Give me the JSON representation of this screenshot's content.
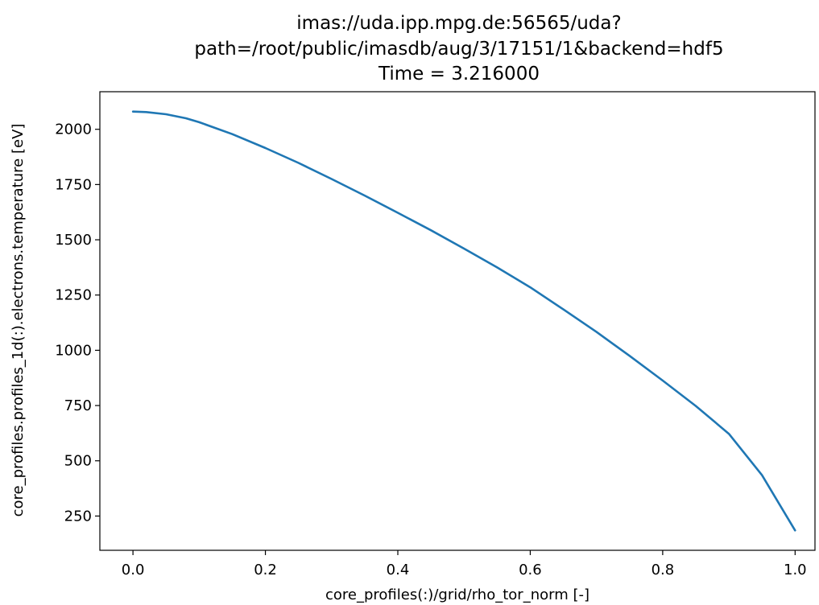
{
  "chart_data": {
    "type": "line",
    "title_lines": [
      "imas://uda.ipp.mpg.de:56565/uda?",
      "path=/root/public/imasdb/aug/3/17151/1&backend=hdf5",
      "Time = 3.216000"
    ],
    "xlabel": "core_profiles(:)/grid/rho_tor_norm [-]",
    "ylabel": "core_profiles.profiles_1d(:).electrons.temperature [eV]",
    "xlim": [
      -0.05,
      1.03
    ],
    "ylim": [
      95,
      2170
    ],
    "x_ticks": [
      0.0,
      0.2,
      0.4,
      0.6,
      0.8,
      1.0
    ],
    "x_tick_labels": [
      "0.0",
      "0.2",
      "0.4",
      "0.6",
      "0.8",
      "1.0"
    ],
    "y_ticks": [
      250,
      500,
      750,
      1000,
      1250,
      1500,
      1750,
      2000
    ],
    "y_tick_labels": [
      "250",
      "500",
      "750",
      "1000",
      "1250",
      "1500",
      "1750",
      "2000"
    ],
    "grid": false,
    "colors": {
      "line": "#1f77b4",
      "axes": "#000000"
    },
    "series": [
      {
        "x": [
          0.0,
          0.02,
          0.05,
          0.08,
          0.1,
          0.15,
          0.2,
          0.25,
          0.3,
          0.35,
          0.4,
          0.45,
          0.5,
          0.55,
          0.6,
          0.65,
          0.7,
          0.75,
          0.8,
          0.85,
          0.9,
          0.95,
          1.0
        ],
        "y": [
          2080,
          2078,
          2068,
          2050,
          2032,
          1978,
          1915,
          1848,
          1775,
          1700,
          1622,
          1543,
          1460,
          1375,
          1285,
          1185,
          1083,
          975,
          863,
          748,
          622,
          435,
          185
        ]
      }
    ]
  }
}
